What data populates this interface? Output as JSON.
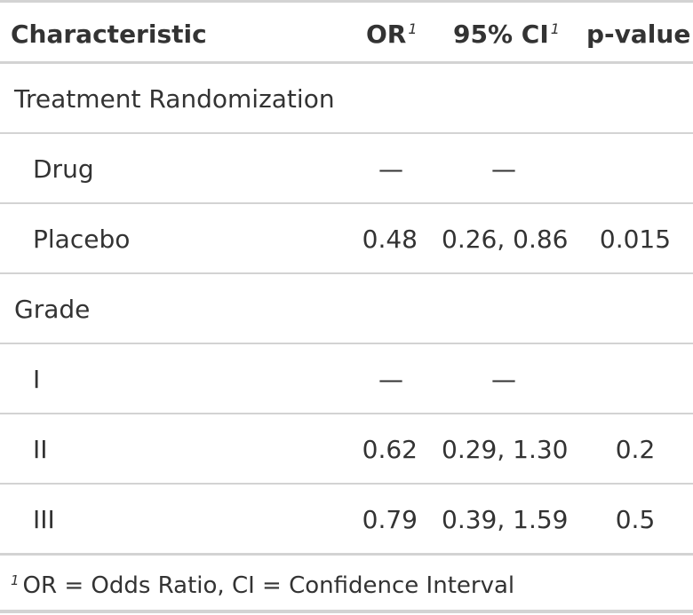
{
  "header": {
    "characteristic": "Characteristic",
    "or": "OR",
    "or_marker": "1",
    "ci": "95% CI",
    "ci_marker": "1",
    "p": "p-value"
  },
  "rows": [
    {
      "label": "Treatment Randomization",
      "or": "",
      "ci": "",
      "p": ""
    },
    {
      "label": "Drug",
      "or": "—",
      "ci": "—",
      "p": ""
    },
    {
      "label": "Placebo",
      "or": "0.48",
      "ci": "0.26, 0.86",
      "p": "0.015"
    },
    {
      "label": "Grade",
      "or": "",
      "ci": "",
      "p": ""
    },
    {
      "label": "I",
      "or": "—",
      "ci": "—",
      "p": ""
    },
    {
      "label": "II",
      "or": "0.62",
      "ci": "0.29, 1.30",
      "p": "0.2"
    },
    {
      "label": "III",
      "or": "0.79",
      "ci": "0.39, 1.59",
      "p": "0.5"
    }
  ],
  "footnote": {
    "marker": "1",
    "text": "OR = Odds Ratio, CI = Confidence Interval"
  }
}
